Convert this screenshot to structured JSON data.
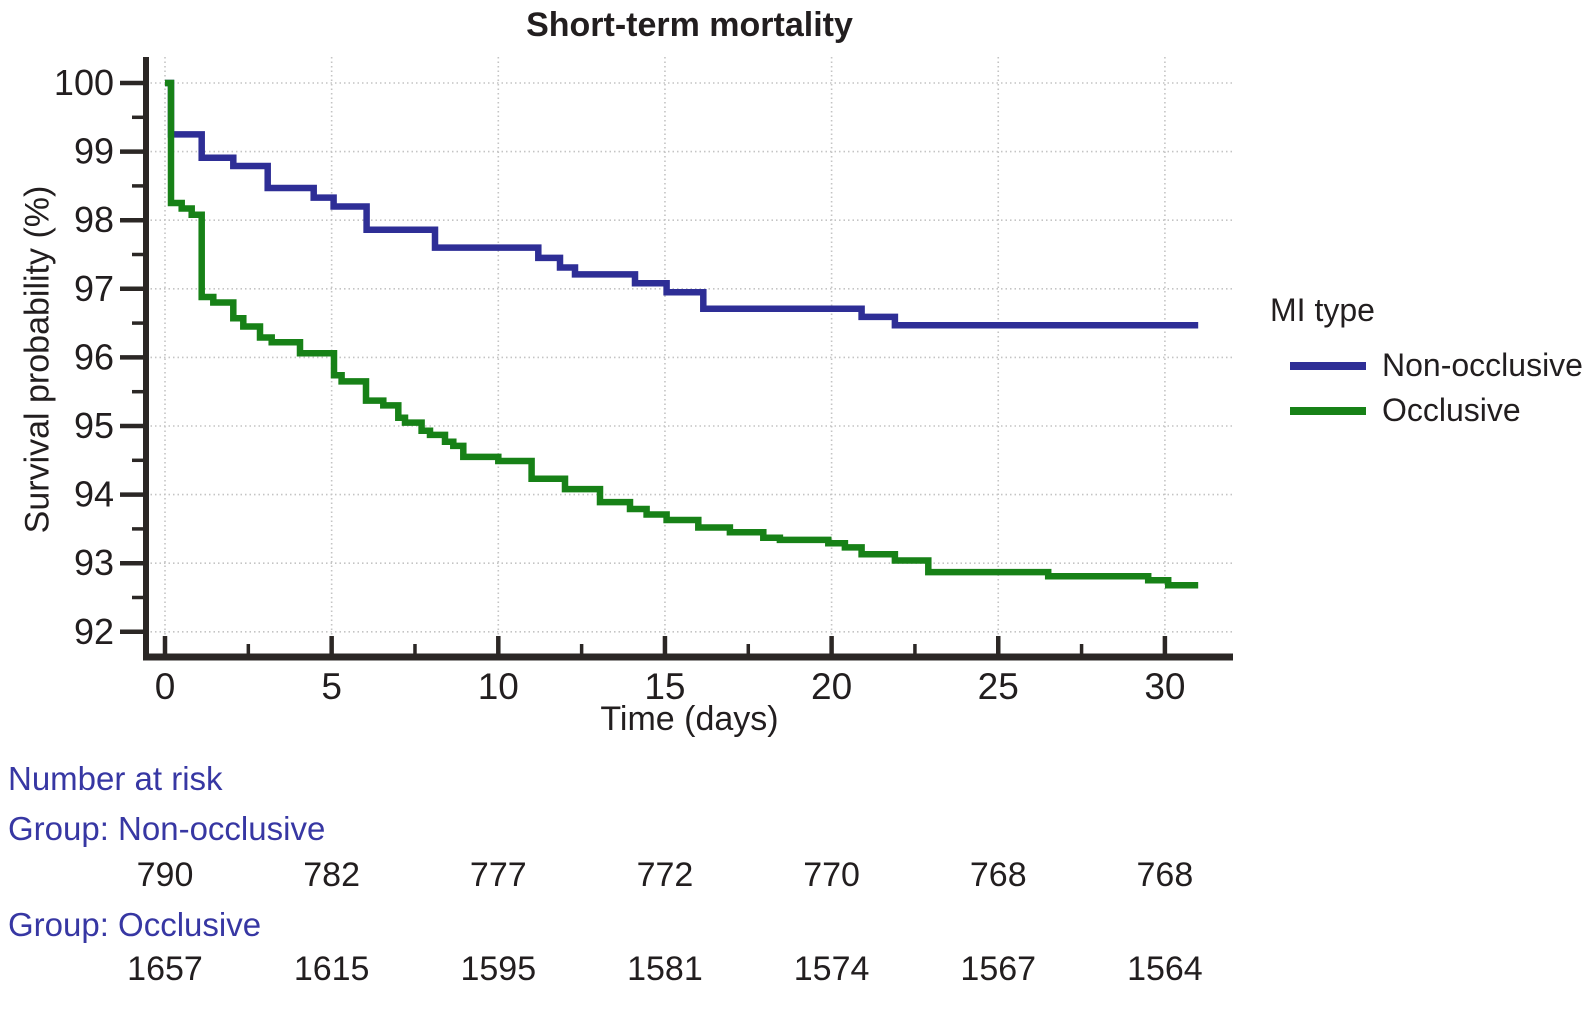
{
  "chart_data": {
    "type": "line",
    "subtype": "kaplan-meier-step",
    "title": "Short-term mortality",
    "xlabel": "Time (days)",
    "ylabel": "Survival probability (%)",
    "legend_title": "MI type",
    "legend_position": "right",
    "grid": "dotted",
    "xlim": [
      0,
      32
    ],
    "ylim": [
      91.6,
      100.4
    ],
    "x_ticks": [
      0,
      5,
      10,
      15,
      20,
      25,
      30
    ],
    "y_ticks": [
      92,
      93,
      94,
      95,
      96,
      97,
      98,
      99,
      100
    ],
    "series": [
      {
        "name": "Non-occlusive",
        "color": "#2e2e96",
        "points": [
          [
            0,
            100
          ],
          [
            0.18,
            99.25
          ],
          [
            1.1,
            98.91
          ],
          [
            2.05,
            98.79
          ],
          [
            3.08,
            98.47
          ],
          [
            4.46,
            98.33
          ],
          [
            5.06,
            98.2
          ],
          [
            6.05,
            97.86
          ],
          [
            8.1,
            97.6
          ],
          [
            11.2,
            97.45
          ],
          [
            11.85,
            97.31
          ],
          [
            12.3,
            97.21
          ],
          [
            14.1,
            97.08
          ],
          [
            15.05,
            96.95
          ],
          [
            16.15,
            96.71
          ],
          [
            20.9,
            96.59
          ],
          [
            21.9,
            96.47
          ],
          [
            31,
            96.47
          ]
        ]
      },
      {
        "name": "Occlusive",
        "color": "#178117",
        "points": [
          [
            0,
            100
          ],
          [
            0.18,
            98.25
          ],
          [
            0.5,
            98.17
          ],
          [
            0.8,
            98.08
          ],
          [
            1.1,
            96.88
          ],
          [
            1.45,
            96.8
          ],
          [
            2.05,
            96.57
          ],
          [
            2.35,
            96.45
          ],
          [
            2.85,
            96.29
          ],
          [
            3.2,
            96.22
          ],
          [
            4.05,
            96.06
          ],
          [
            5.07,
            95.74
          ],
          [
            5.3,
            95.65
          ],
          [
            6.03,
            95.37
          ],
          [
            6.55,
            95.3
          ],
          [
            7.0,
            95.12
          ],
          [
            7.2,
            95.05
          ],
          [
            7.7,
            94.93
          ],
          [
            7.95,
            94.87
          ],
          [
            8.4,
            94.77
          ],
          [
            8.65,
            94.71
          ],
          [
            8.95,
            94.55
          ],
          [
            10.0,
            94.49
          ],
          [
            11.0,
            94.23
          ],
          [
            12.0,
            94.08
          ],
          [
            13.05,
            93.89
          ],
          [
            13.95,
            93.79
          ],
          [
            14.45,
            93.71
          ],
          [
            15.05,
            93.63
          ],
          [
            16.0,
            93.52
          ],
          [
            16.95,
            93.45
          ],
          [
            17.95,
            93.37
          ],
          [
            18.45,
            93.34
          ],
          [
            19.9,
            93.29
          ],
          [
            20.4,
            93.23
          ],
          [
            20.9,
            93.13
          ],
          [
            21.9,
            93.04
          ],
          [
            22.9,
            92.87
          ],
          [
            26.5,
            92.81
          ],
          [
            29.5,
            92.75
          ],
          [
            30.1,
            92.68
          ],
          [
            31,
            92.68
          ]
        ]
      }
    ]
  },
  "risk_table": {
    "heading": "Number at risk",
    "times": [
      0,
      5,
      10,
      15,
      20,
      25,
      30
    ],
    "groups": [
      {
        "label": "Group: Non-occlusive",
        "values": [
          "790",
          "782",
          "777",
          "772",
          "770",
          "768",
          "768"
        ]
      },
      {
        "label": "Group: Occlusive",
        "values": [
          "1657",
          "1615",
          "1595",
          "1581",
          "1574",
          "1567",
          "1564"
        ]
      }
    ]
  },
  "colors": {
    "axis": "#2b2725",
    "gridline": "#c4c4c4",
    "annotation_blue": "#3737a3",
    "text": "#221e1f",
    "background": "#ffffff"
  }
}
